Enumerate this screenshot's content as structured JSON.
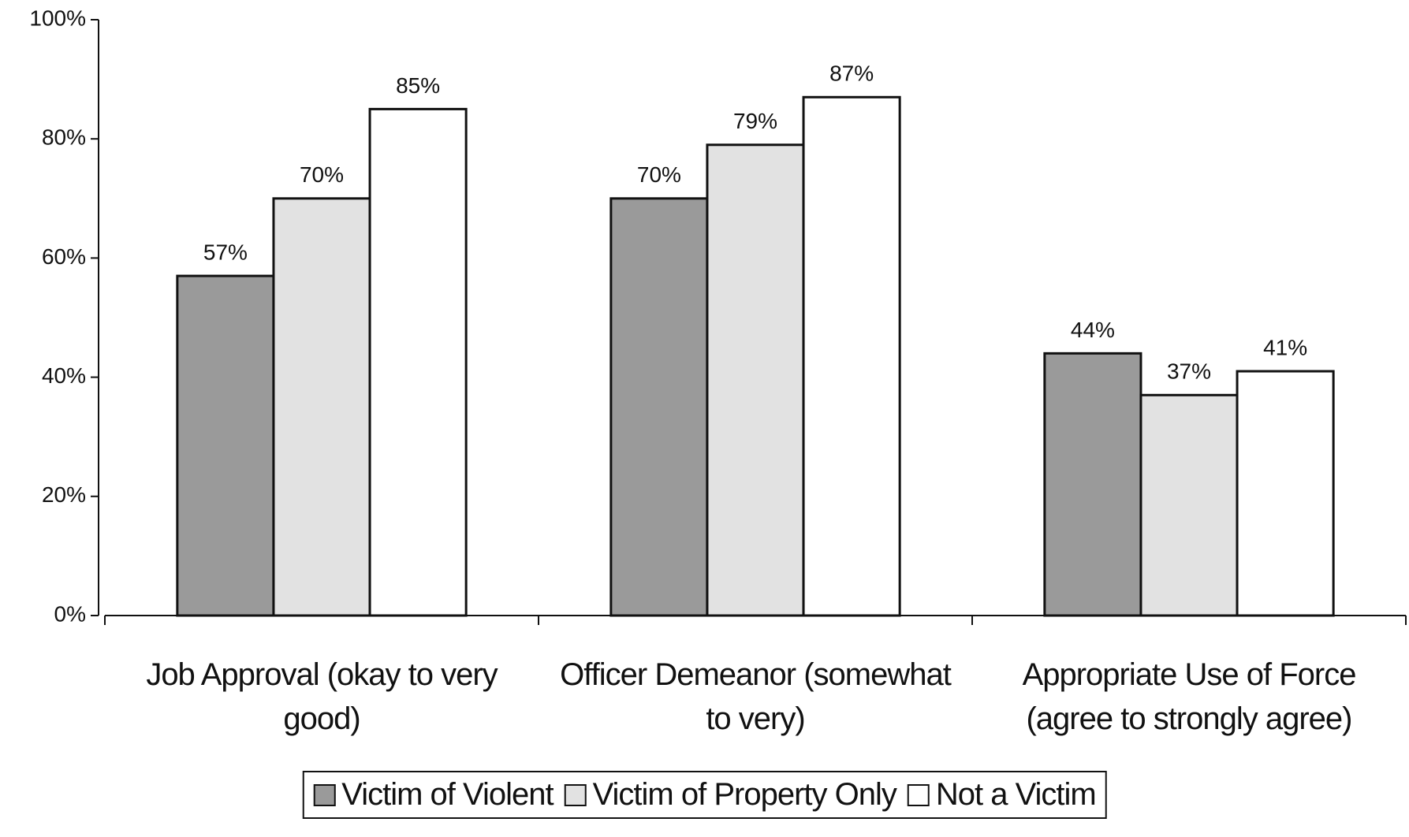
{
  "chart_data": {
    "type": "bar",
    "categories": [
      "Job Approval (okay to very good)",
      "Officer Demeanor (somewhat to very)",
      "Appropriate Use of Force (agree to strongly agree)"
    ],
    "series": [
      {
        "name": "Victim of Violent",
        "color": "#9a9a9a",
        "values": [
          57,
          70,
          44
        ],
        "value_labels": [
          "57%",
          "70%",
          "44%"
        ]
      },
      {
        "name": "Victim of Property Only",
        "color": "#e2e2e2",
        "values": [
          70,
          79,
          37
        ],
        "value_labels": [
          "70%",
          "79%",
          "37%"
        ]
      },
      {
        "name": "Not a Victim",
        "color": "#ffffff",
        "values": [
          85,
          87,
          41
        ],
        "value_labels": [
          "85%",
          "87%",
          "41%"
        ]
      }
    ],
    "ylim": [
      0,
      100
    ],
    "yticks": [
      {
        "value": 0,
        "label": "0%"
      },
      {
        "value": 20,
        "label": "20%"
      },
      {
        "value": 40,
        "label": "40%"
      },
      {
        "value": 60,
        "label": "60%"
      },
      {
        "value": 80,
        "label": "80%"
      },
      {
        "value": 100,
        "label": "100%"
      }
    ],
    "grid": false,
    "legend": "bottom"
  }
}
